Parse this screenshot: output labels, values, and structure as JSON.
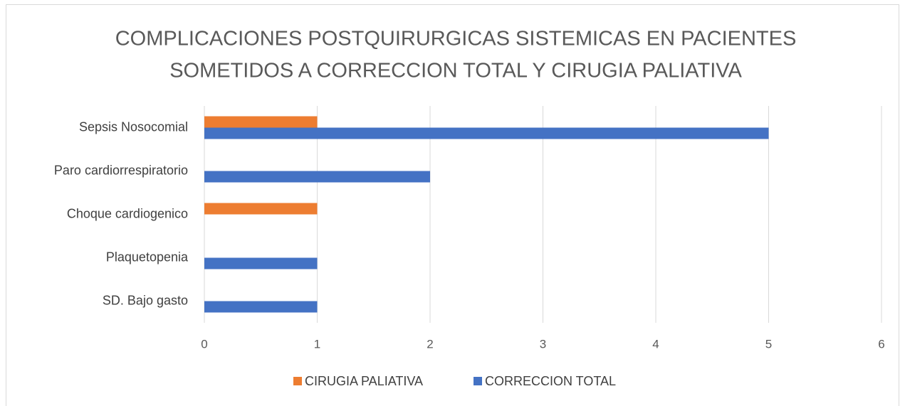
{
  "chart_data": {
    "type": "bar",
    "orientation": "horizontal",
    "title": [
      "COMPLICACIONES POSTQUIRURGICAS SISTEMICAS EN PACIENTES",
      "SOMETIDOS A CORRECCION TOTAL Y CIRUGIA PALIATIVA"
    ],
    "categories": [
      "Sepsis Nosocomial",
      "Paro cardiorrespiratorio",
      "Choque cardiogenico",
      "Plaquetopenia",
      "SD. Bajo gasto"
    ],
    "series": [
      {
        "name": "CIRUGIA PALIATIVA",
        "color": "#ed7d31",
        "values": [
          1,
          0,
          1,
          0,
          0
        ]
      },
      {
        "name": "CORRECCION TOTAL",
        "color": "#4472c4",
        "values": [
          5,
          2,
          0,
          1,
          1
        ]
      }
    ],
    "xlim": [
      0,
      6
    ],
    "xticks": [
      0,
      1,
      2,
      3,
      4,
      5,
      6
    ],
    "grid": true,
    "legend": "bottom"
  }
}
